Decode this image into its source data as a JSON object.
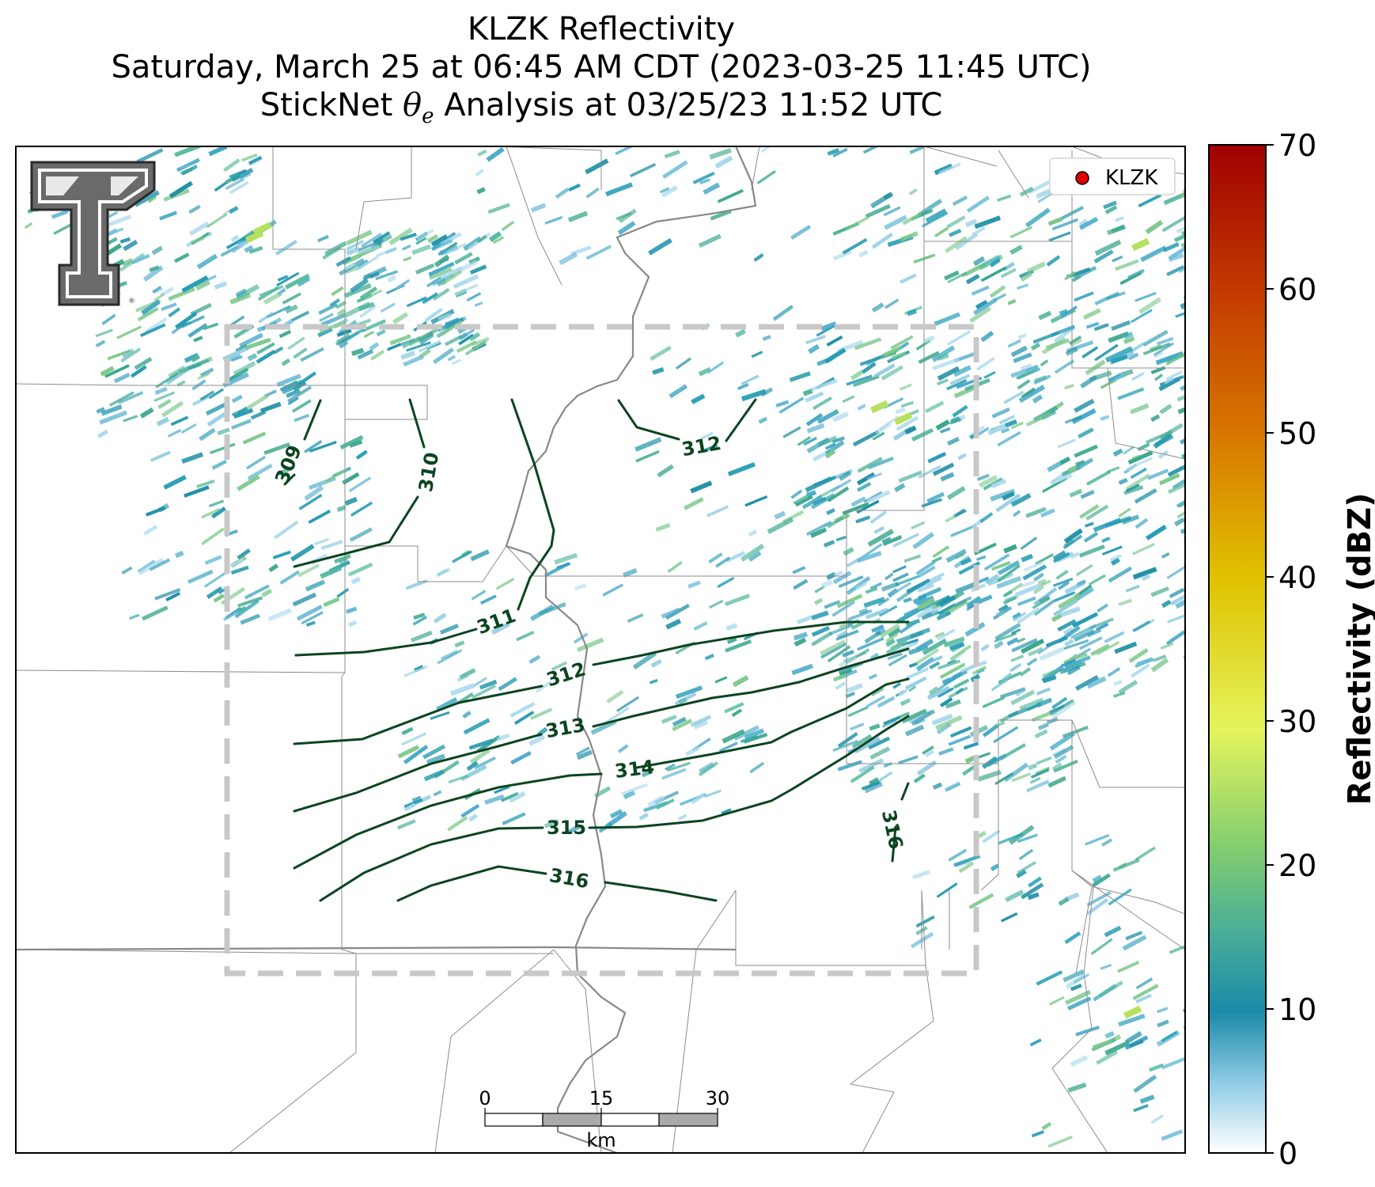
{
  "title": {
    "line1": "KLZK Reflectivity",
    "line2": "Saturday, March 25 at 06:45 AM CDT (2023-03-25 11:45 UTC)",
    "line3_prefix": "StickNet ",
    "line3_symbol": "θ",
    "line3_sub": "e",
    "line3_suffix": " Analysis at 03/25/23 11:52 UTC"
  },
  "legend": {
    "label": "KLZK",
    "marker_color": "#e00000"
  },
  "colorbar": {
    "label": "Reflectivity (dBZ)",
    "ticks": [
      "0",
      "10",
      "20",
      "30",
      "40",
      "50",
      "60",
      "70"
    ],
    "min": 0,
    "max": 70,
    "colors": [
      "#ffffff",
      "#3ba0cc",
      "#1a8aa8",
      "#58b890",
      "#88d068",
      "#e0f060",
      "#e0c000",
      "#d88000",
      "#c84000",
      "#a00000"
    ]
  },
  "scalebar": {
    "ticks": [
      "0",
      "15",
      "30"
    ],
    "unit": "km"
  },
  "contours": {
    "color": "#0b4420",
    "labels": [
      "309",
      "310",
      "311",
      "312",
      "312",
      "313",
      "314",
      "315",
      "316",
      "316"
    ]
  },
  "logo": {
    "name": "Texas Tech Double T",
    "registered": "®"
  }
}
